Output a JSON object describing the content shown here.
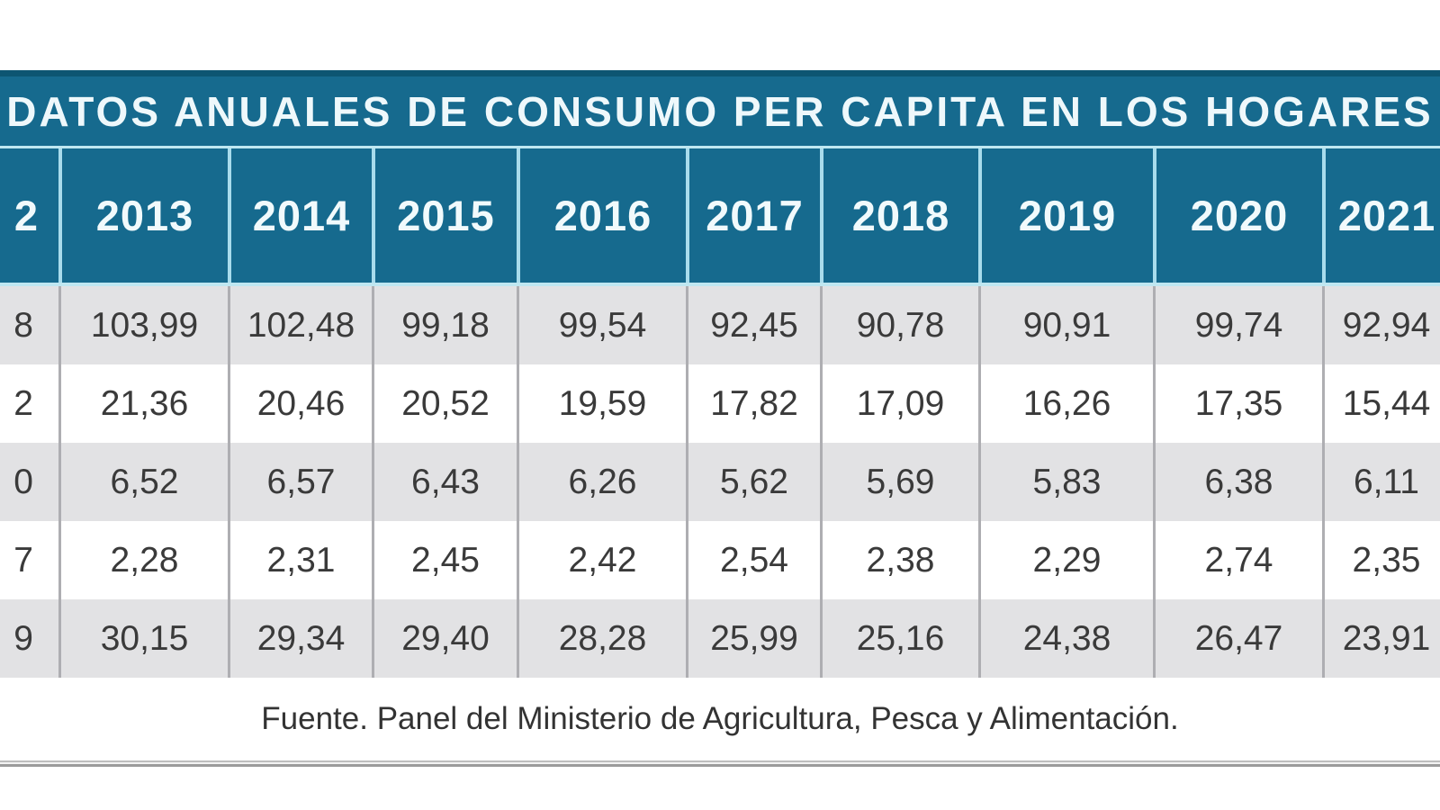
{
  "title": "DATOS ANUALES DE CONSUMO PER CAPITA EN LOS HOGARES",
  "chart_data": {
    "type": "table",
    "title": "DATOS ANUALES DE CONSUMO PER CAPITA EN LOS HOGARES",
    "columns": [
      "2013",
      "2014",
      "2015",
      "2016",
      "2017",
      "2018",
      "2019",
      "2020",
      "2021"
    ],
    "left_column_partial": {
      "note": "leftmost column is cropped at the image edge; only last glyphs visible",
      "header_visible_fragment": "2",
      "row_visible_fragments": [
        "8",
        "2",
        "0",
        "7",
        "9"
      ]
    },
    "row_labels_visible": false,
    "rows": [
      [
        "103,99",
        "102,48",
        "99,18",
        "99,54",
        "92,45",
        "90,78",
        "90,91",
        "99,74",
        "92,94"
      ],
      [
        "21,36",
        "20,46",
        "20,52",
        "19,59",
        "17,82",
        "17,09",
        "16,26",
        "17,35",
        "15,44"
      ],
      [
        "6,52",
        "6,57",
        "6,43",
        "6,26",
        "5,62",
        "5,69",
        "5,83",
        "6,38",
        "6,11"
      ],
      [
        "2,28",
        "2,31",
        "2,45",
        "2,42",
        "2,54",
        "2,38",
        "2,29",
        "2,74",
        "2,35"
      ],
      [
        "30,15",
        "29,34",
        "29,40",
        "28,28",
        "25,99",
        "25,16",
        "24,38",
        "26,47",
        "23,91"
      ]
    ],
    "source": "Fuente. Panel del Ministerio de Agricultura, Pesca y Alimentación."
  },
  "footer": {
    "source_text": "Fuente. Panel del Ministerio de Agricultura, Pesca y Alimentación."
  },
  "colors": {
    "teal": "#166a8e",
    "teal_dark_edge": "#0d5572",
    "header_divider_cyan": "#a9dcec",
    "header_underline_cyan": "#bfe7f1",
    "row_gray": "#e2e2e4",
    "row_white": "#ffffff",
    "cell_divider_gray": "#aeaeb2",
    "text_dark": "#3a3a3a",
    "title_text": "#eef8fb"
  }
}
